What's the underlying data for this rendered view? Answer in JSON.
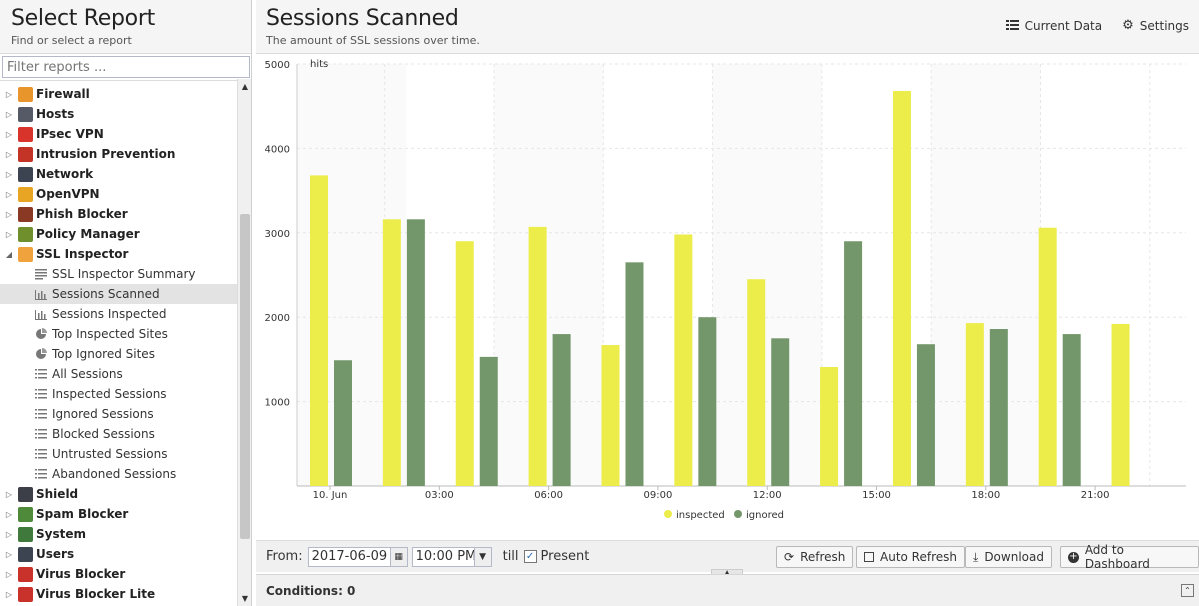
{
  "left": {
    "title": "Select Report",
    "subtitle": "Find or select a report",
    "filter_placeholder": "Filter reports ...",
    "apps": [
      {
        "label": "Firewall",
        "icon": "firewall-icon",
        "color": "#e8952c"
      },
      {
        "label": "Hosts",
        "icon": "hosts-icon",
        "color": "#555a66"
      },
      {
        "label": "IPsec VPN",
        "icon": "lock-icon",
        "color": "#d9342b"
      },
      {
        "label": "Intrusion Prevention",
        "icon": "intrusion-prevention-icon",
        "color": "#c33326"
      },
      {
        "label": "Network",
        "icon": "network-icon",
        "color": "#3c4452"
      },
      {
        "label": "OpenVPN",
        "icon": "openvpn-icon",
        "color": "#e8a524"
      },
      {
        "label": "Phish Blocker",
        "icon": "phish-blocker-icon",
        "color": "#8a3a24"
      },
      {
        "label": "Policy Manager",
        "icon": "policy-manager-icon",
        "color": "#6f8f2c"
      },
      {
        "label": "SSL Inspector",
        "icon": "ssl-inspector-icon",
        "color": "#f0a23c",
        "expanded": true
      }
    ],
    "ssl_children": [
      {
        "label": "SSL Inspector Summary",
        "icon": "text-lines-icon"
      },
      {
        "label": "Sessions Scanned",
        "icon": "bar-chart-icon",
        "selected": true
      },
      {
        "label": "Sessions Inspected",
        "icon": "bar-chart-icon"
      },
      {
        "label": "Top Inspected Sites",
        "icon": "pie-chart-icon"
      },
      {
        "label": "Top Ignored Sites",
        "icon": "pie-chart-icon"
      },
      {
        "label": "All Sessions",
        "icon": "list-icon"
      },
      {
        "label": "Inspected Sessions",
        "icon": "list-icon"
      },
      {
        "label": "Ignored Sessions",
        "icon": "list-icon"
      },
      {
        "label": "Blocked Sessions",
        "icon": "list-icon"
      },
      {
        "label": "Untrusted Sessions",
        "icon": "list-icon"
      },
      {
        "label": "Abandoned Sessions",
        "icon": "list-icon"
      }
    ],
    "apps_after": [
      {
        "label": "Shield",
        "icon": "shield-icon",
        "color": "#3c3f48"
      },
      {
        "label": "Spam Blocker",
        "icon": "spam-blocker-icon",
        "color": "#4f8a3a"
      },
      {
        "label": "System",
        "icon": "system-icon",
        "color": "#3f7a3c"
      },
      {
        "label": "Users",
        "icon": "users-icon",
        "color": "#3c4452"
      },
      {
        "label": "Virus Blocker",
        "icon": "virus-blocker-icon",
        "color": "#c8322a"
      },
      {
        "label": "Virus Blocker Lite",
        "icon": "virus-blocker-lite-icon",
        "color": "#c8322a"
      }
    ]
  },
  "right": {
    "title": "Sessions Scanned",
    "subtitle": "The amount of SSL sessions over time.",
    "current_data_label": "Current Data",
    "settings_label": "Settings"
  },
  "chart_data": {
    "type": "bar",
    "ylabel": "hits",
    "ylim": [
      0,
      5000
    ],
    "yticks": [
      1000,
      2000,
      3000,
      4000,
      5000
    ],
    "x_tick_labels": [
      "10. Jun",
      "03:00",
      "06:00",
      "09:00",
      "12:00",
      "15:00",
      "18:00",
      "21:00"
    ],
    "x_tick_hours": [
      0,
      3,
      6,
      9,
      12,
      15,
      18,
      21
    ],
    "hours": [
      0,
      2,
      4,
      6,
      8,
      10,
      12,
      14,
      16,
      18,
      20,
      22
    ],
    "series": [
      {
        "name": "inspected",
        "color": "#ecec4a",
        "values": [
          3680,
          3160,
          2900,
          3070,
          1670,
          2980,
          2450,
          1410,
          4680,
          1930,
          3060,
          1920
        ]
      },
      {
        "name": "ignored",
        "color": "#73976a",
        "values": [
          1490,
          3160,
          1530,
          1800,
          2650,
          2000,
          1750,
          2900,
          1680,
          1860,
          1800,
          null
        ]
      }
    ],
    "legend_position": "bottom-center",
    "grid": true
  },
  "bottom": {
    "from_label": "From:",
    "date": "2017-06-09",
    "time": "10:00 PM",
    "till_label": "till",
    "present_label": "Present",
    "refresh": "Refresh",
    "auto_refresh": "Auto Refresh",
    "download": "Download",
    "add_dashboard": "Add to Dashboard",
    "conditions": "Conditions: 0"
  }
}
